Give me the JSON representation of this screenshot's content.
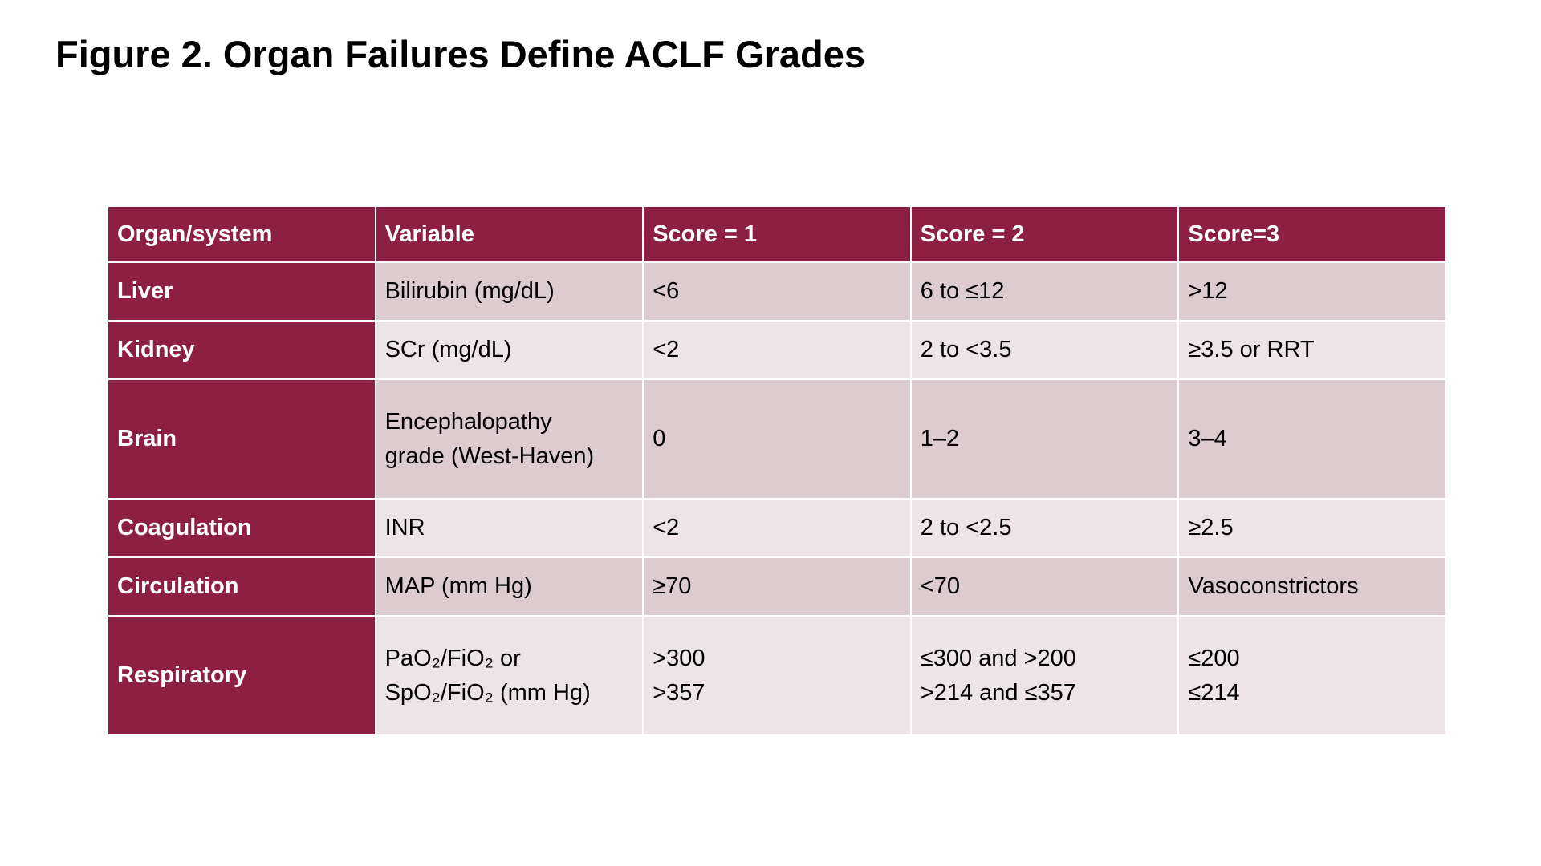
{
  "header": {
    "title": "Figure 2. Organ Failures Define ACLF Grades"
  },
  "table": {
    "columns": [
      "Organ/system",
      "Variable",
      "Score = 1",
      "Score = 2",
      "Score=3"
    ],
    "rows": [
      [
        "Liver",
        "Bilirubin (mg/dL)",
        "<6",
        "6 to ≤12",
        ">12"
      ],
      [
        "Kidney",
        "SCr (mg/dL)",
        "<2",
        "2 to <3.5",
        "≥3.5 or RRT"
      ],
      [
        "Brain",
        [
          "Encephalopathy",
          "grade (West-Haven)"
        ],
        "0",
        "1–2",
        "3–4"
      ],
      [
        "Coagulation",
        "INR",
        "<2",
        "2 to <2.5",
        "≥2.5"
      ],
      [
        "Circulation",
        "MAP (mm Hg)",
        "≥70",
        "<70",
        "Vasoconstrictors"
      ],
      [
        "Respiratory",
        [
          "PaO₂/FiO₂ or",
          "SpO₂/FiO₂ (mm Hg)"
        ],
        [
          ">300",
          ">357"
        ],
        [
          "≤300 and >200",
          ">214 and ≤357"
        ],
        [
          "≤200",
          "≤214"
        ]
      ]
    ]
  }
}
